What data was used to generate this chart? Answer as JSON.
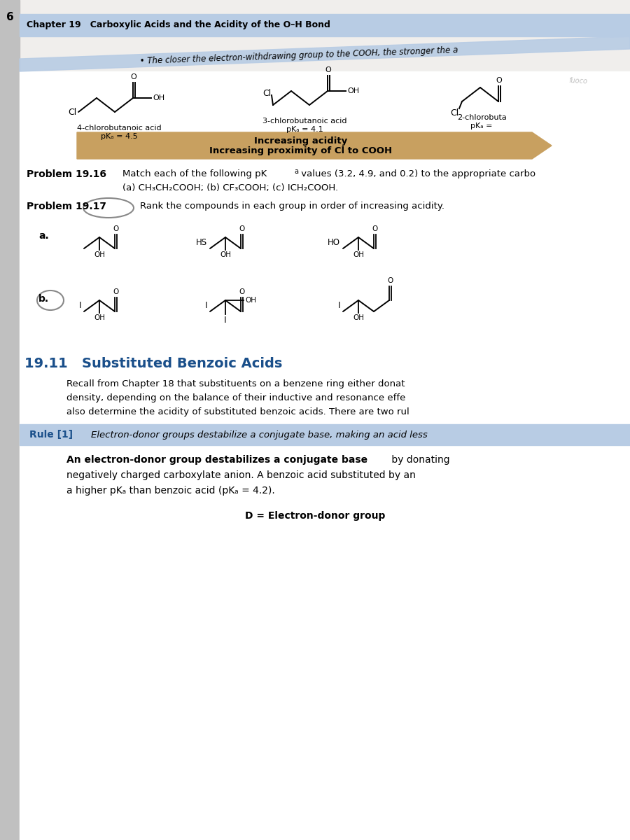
{
  "page_number": "6",
  "chapter_header": "Chapter 19   Carboxylic Acids and the Acidity of the O–H Bond",
  "bullet_text": "• The closer the electron-withdrawing group to the COOH, the stronger the a",
  "compound1_name": "4-chlorobutanoic acid",
  "compound1_pka": "pKₐ = 4.5",
  "compound2_name": "3-chlorobutanoic acid",
  "compound2_pka": "pKₐ = 4.1",
  "compound3_partial": "2-chlorobuta",
  "compound3_pka": "pKₐ =",
  "increasing_acidity": "Increasing acidity",
  "increasing_proximity": "Increasing proximity of Cl to COOH",
  "problem1616_label": "Problem 19.16",
  "problem1616_matchtext": "Match each of the following pK",
  "problem1616_a_sub": "a",
  "problem1616_rest": " values (3.2, 4.9, and 0.2) to the appropriate carbo",
  "problem1616_line2": "(a) CH₃CH₂COOH; (b) CF₃COOH; (c) ICH₂COOH.",
  "problem1717_label": "Problem 19.17",
  "problem1717_text": "Rank the compounds in each group in order of increasing acidity.",
  "part_a_label": "a.",
  "part_b_label": "b.",
  "section_title": "19.11   Substituted Benzoic Acids",
  "section_para1_line1": "Recall from Chapter 18 that substituents on a benzene ring either donat",
  "section_para1_line2": "density, depending on the balance of their inductive and resonance effe",
  "section_para1_line3": "also determine the acidity of substituted benzoic acids. There are two rul",
  "rule1_label": "Rule [1]",
  "rule1_text": "Electron-donor groups destabilize a conjugate base, making an acid less",
  "bold_text": "An electron-donor group destabilizes a conjugate base",
  "after_bold": " by donating",
  "para_line2": "negatively charged carboxylate anion. A benzoic acid substituted by an",
  "para_line3": "a higher pKₐ than benzoic acid (pKₐ = 4.2).",
  "d_label": "D = Electron-donor group",
  "page_bg": "#f0eeec",
  "content_bg": "#ffffff",
  "header_bg": "#b8cce4",
  "diag_band_color": "#b8cce4",
  "arrow_color": "#c8a060",
  "rule1_bg": "#b8cce4",
  "section_title_color": "#1a4f8a",
  "left_margin_color": "#c0c0c0",
  "rule_label_color": "#1a4f8a"
}
